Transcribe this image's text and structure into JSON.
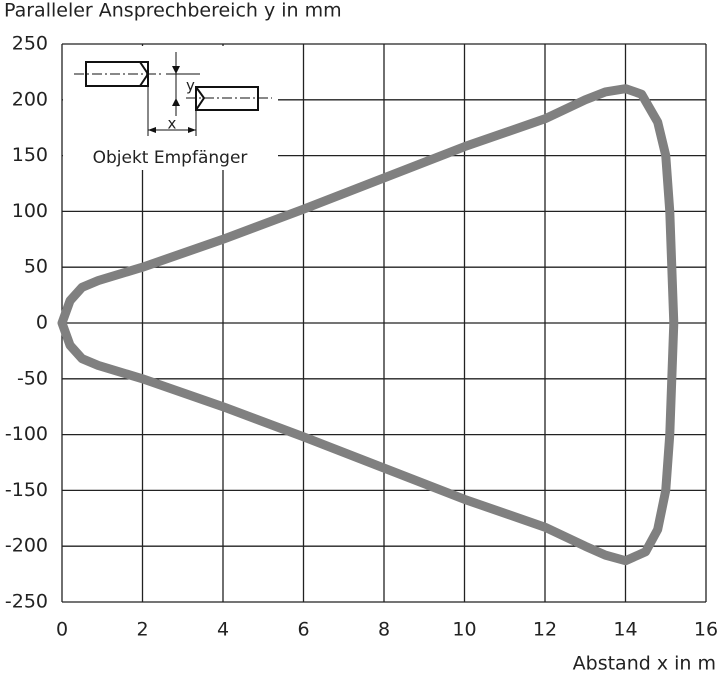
{
  "chart_data": {
    "type": "line",
    "y_title": "Paralleler Ansprechbereich y in mm",
    "x_title": "Abstand x in m",
    "inset_labels": {
      "x": "x",
      "y": "y",
      "caption": "Objekt Empfänger"
    },
    "x": [
      0,
      0.2,
      0.5,
      0.9,
      2,
      4,
      6,
      8,
      10,
      12,
      13,
      13.5,
      14,
      14.4,
      14.8,
      15,
      15.1,
      15.2,
      15.1,
      15,
      14.8,
      14.5,
      14,
      13.5,
      13,
      12,
      10,
      8,
      6,
      4,
      2,
      0.9,
      0.5,
      0.2,
      0
    ],
    "series": [
      {
        "color": "#808080",
        "values": [
          0,
          20,
          32,
          38,
          50,
          75,
          102,
          130,
          158,
          183,
          200,
          207,
          210,
          205,
          180,
          150,
          100,
          0,
          -100,
          -150,
          -185,
          -205,
          -213,
          -208,
          -200,
          -183,
          -158,
          -130,
          -102,
          -75,
          -50,
          -38,
          -32,
          -20,
          0
        ]
      }
    ],
    "xlim": [
      0,
      16
    ],
    "xticks": [
      0,
      2,
      4,
      6,
      8,
      10,
      12,
      14,
      16
    ],
    "ylim": [
      -250,
      250
    ],
    "yticks": [
      -250,
      -200,
      -150,
      -100,
      -50,
      0,
      50,
      100,
      150,
      200,
      250
    ],
    "grid": true
  }
}
